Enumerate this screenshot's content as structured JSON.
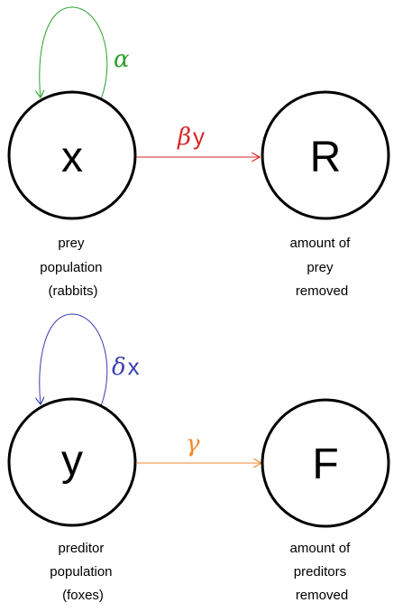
{
  "prey_block": {
    "node_x": {
      "letter": "x",
      "caption": [
        "prey",
        "population",
        "(rabbits)"
      ]
    },
    "node_r": {
      "letter": "R",
      "caption": [
        "amount of",
        "prey",
        "removed"
      ]
    },
    "self_loop_rate": "α",
    "edge_rate_symbol": "β",
    "edge_rate_var": "y",
    "colors": {
      "loop": "#2ca02c",
      "edge": "#d62728"
    }
  },
  "predator_block": {
    "node_y": {
      "letter": "y",
      "caption": [
        "preditor",
        "population",
        "(foxes)"
      ]
    },
    "node_f": {
      "letter": "F",
      "caption": [
        "amount of",
        "preditors",
        "removed"
      ]
    },
    "self_loop_rate_symbol": "δ",
    "self_loop_rate_var": "x",
    "edge_rate": "γ",
    "colors": {
      "loop": "#3a3fb0",
      "edge": "#f08a2c"
    }
  }
}
